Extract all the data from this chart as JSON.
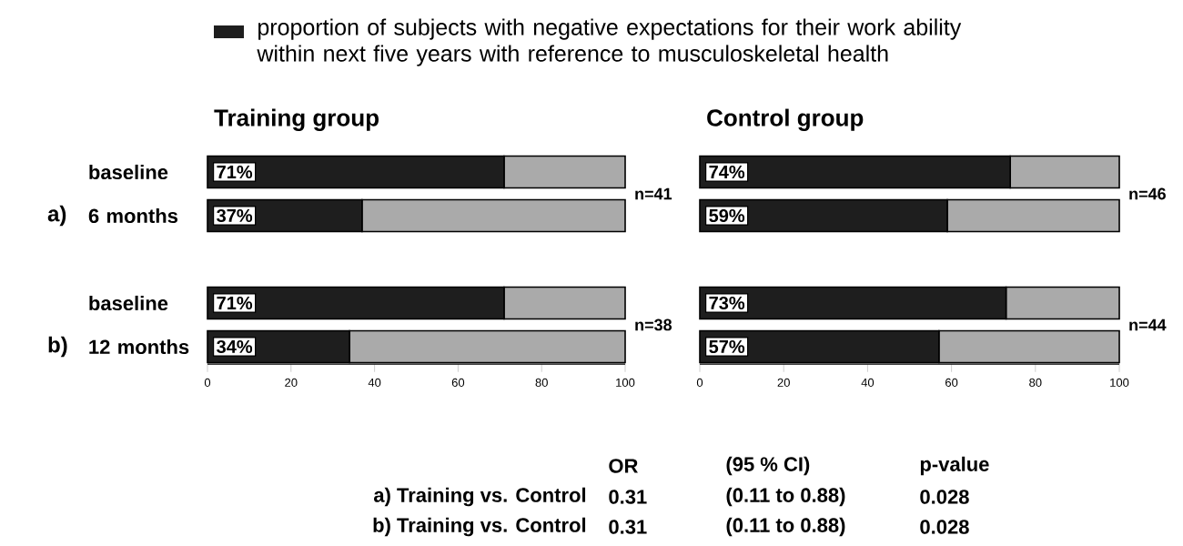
{
  "chart_data": [
    {
      "type": "bar",
      "orientation": "horizontal",
      "stacked": true,
      "title": "Training group",
      "legend": "top",
      "categories": [
        "baseline",
        "6 months",
        null,
        "baseline",
        "12 months"
      ],
      "series": [
        {
          "name": "proportion of subjects with negative expectations for their work ability within next five years with reference to musculoskeletal health",
          "color": "#1e1e1e",
          "values": [
            71,
            37,
            null,
            71,
            34
          ],
          "value_labels": [
            "71%",
            "37%",
            null,
            "71%",
            "34%"
          ]
        },
        {
          "color": "#aaaaaa",
          "values": [
            29,
            63,
            null,
            29,
            66
          ]
        }
      ],
      "xlim": [
        0,
        100
      ],
      "xticks": [
        0,
        20,
        40,
        60,
        80,
        100
      ],
      "annotations": [
        "a)",
        "b)",
        "n=41",
        "n=38",
        "OR",
        "(95 % CI)",
        "p-value",
        "a) Training vs. Control",
        "0.31",
        "(0.11 to 0.88)",
        "0.028",
        "b) Training vs. Control",
        "0.31",
        "(0.11 to 0.88)",
        "0.028"
      ]
    },
    {
      "type": "bar",
      "orientation": "horizontal",
      "stacked": true,
      "title": "Control group",
      "categories": [
        null,
        null,
        null,
        null,
        null
      ],
      "series": [
        {
          "color": "#1e1e1e",
          "values": [
            74,
            59,
            null,
            73,
            57
          ],
          "value_labels": [
            "74%",
            "59%",
            null,
            "73%",
            "57%"
          ]
        },
        {
          "color": "#aaaaaa",
          "values": [
            26,
            41,
            null,
            27,
            43
          ]
        }
      ],
      "xlim": [
        0,
        100
      ],
      "xticks": [
        0,
        20,
        40,
        60,
        80,
        100
      ],
      "annotations": [
        "n=46",
        "n=44"
      ]
    }
  ]
}
